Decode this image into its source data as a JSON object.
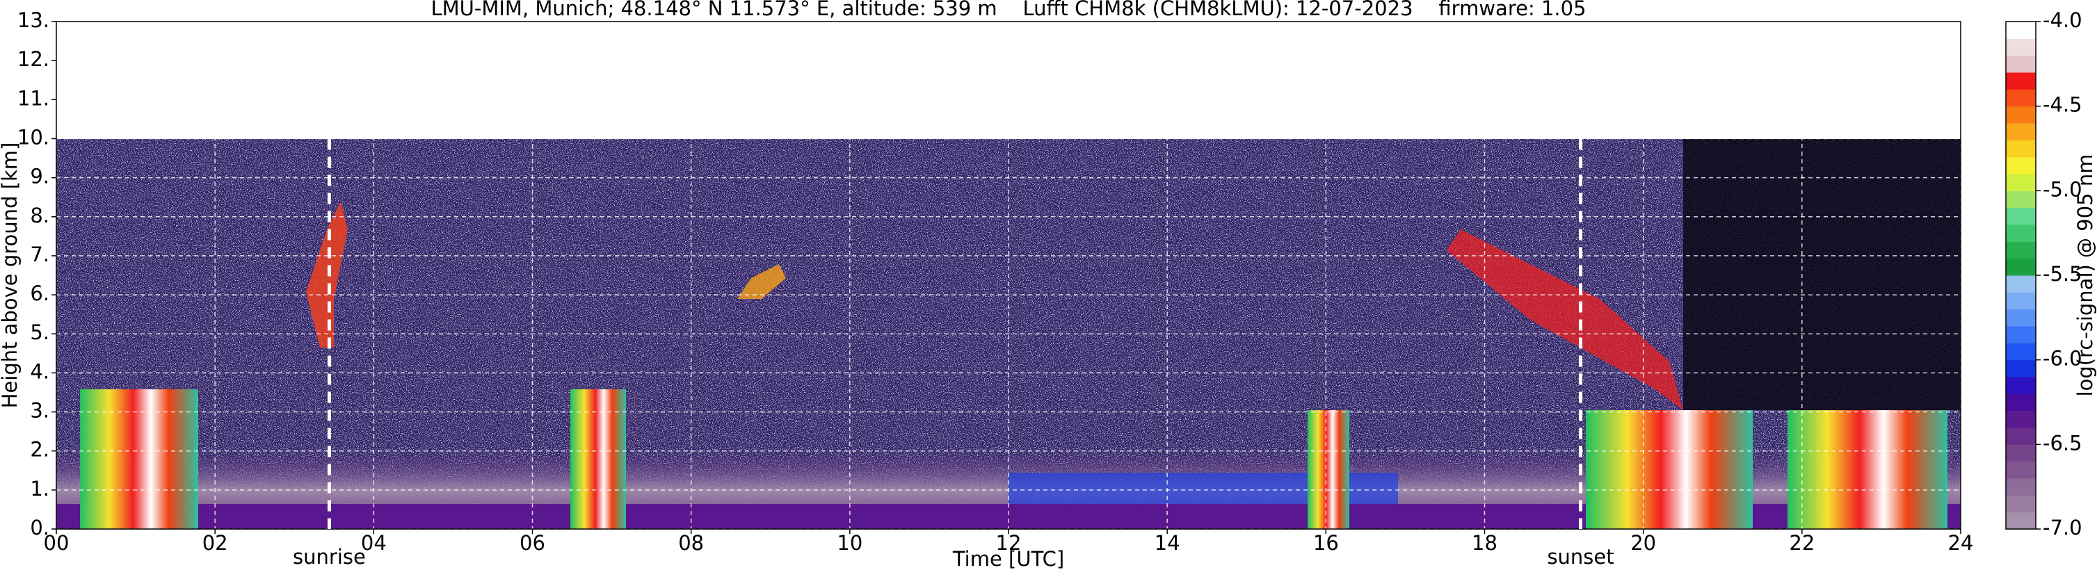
{
  "chart_data": {
    "type": "heatmap",
    "title": "LMU-MIM, Munich; 48.148° N 11.573° E, altitude: 539 m    Lufft CHM8k (CHM8kLMU): 12-07-2023    firmware: 1.05",
    "x_label": "Time [UTC]",
    "y_label": "Height above ground [km]",
    "xlim": [
      0,
      24
    ],
    "xticks": [
      {
        "value": 0,
        "label": "00"
      },
      {
        "value": 2,
        "label": "02"
      },
      {
        "value": 4,
        "label": "04"
      },
      {
        "value": 6,
        "label": "06"
      },
      {
        "value": 8,
        "label": "08"
      },
      {
        "value": 10,
        "label": "10"
      },
      {
        "value": 12,
        "label": "12"
      },
      {
        "value": 14,
        "label": "14"
      },
      {
        "value": 16,
        "label": "16"
      },
      {
        "value": 18,
        "label": "18"
      },
      {
        "value": 20,
        "label": "20"
      },
      {
        "value": 22,
        "label": "22"
      },
      {
        "value": 24,
        "label": "24"
      }
    ],
    "ylim": [
      0,
      13
    ],
    "yticks": [
      {
        "value": 0,
        "label": "0."
      },
      {
        "value": 1,
        "label": "1."
      },
      {
        "value": 2,
        "label": "2."
      },
      {
        "value": 3,
        "label": "3."
      },
      {
        "value": 4,
        "label": "4."
      },
      {
        "value": 5,
        "label": "5."
      },
      {
        "value": 6,
        "label": "6."
      },
      {
        "value": 7,
        "label": "7."
      },
      {
        "value": 8,
        "label": "8."
      },
      {
        "value": 9,
        "label": "9."
      },
      {
        "value": 10,
        "label": "10."
      },
      {
        "value": 11,
        "label": "11."
      },
      {
        "value": 12,
        "label": "12."
      },
      {
        "value": 13,
        "label": "13."
      }
    ],
    "grid": true,
    "annotations": [
      {
        "label": "sunrise",
        "x": 3.44
      },
      {
        "label": "sunset",
        "x": 19.21
      }
    ],
    "colorbar": {
      "label": "log(rc-signal) @ 905 nm",
      "lim": [
        -7,
        -4
      ],
      "ticks": [
        {
          "value": -7,
          "label": "-7.0"
        },
        {
          "value": -6.5,
          "label": "-6.5"
        },
        {
          "value": -6,
          "label": "-6.0"
        },
        {
          "value": -5.5,
          "label": "-5.5"
        },
        {
          "value": -5,
          "label": "-5.0"
        },
        {
          "value": -4.5,
          "label": "-4.5"
        },
        {
          "value": -4,
          "label": "-4.0"
        }
      ],
      "colors": [
        "#a690ac",
        "#9a7fa2",
        "#8f6c99",
        "#825791",
        "#76448b",
        "#6a2f8a",
        "#5c1a91",
        "#4a0c9e",
        "#2c12c0",
        "#1434e0",
        "#1f55f2",
        "#3a74f8",
        "#5a92f6",
        "#7aacf4",
        "#98c2f0",
        "#1aa040",
        "#28b050",
        "#40c870",
        "#60d890",
        "#a0e468",
        "#d0f040",
        "#f6f030",
        "#f8d020",
        "#f8a818",
        "#f87c14",
        "#f8501a",
        "#f01818",
        "#e4c4c8",
        "#f0dede",
        "#ffffff"
      ]
    }
  }
}
